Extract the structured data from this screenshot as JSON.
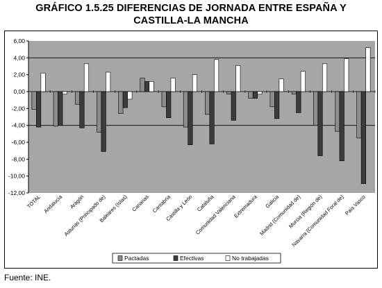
{
  "title_line1": "GRÁFICO 1.5.25 DIFERENCIAS DE JORNADA ENTRE ESPAÑA Y",
  "title_line2": "CASTILLA-LA MANCHA",
  "source": "Fuente: INE.",
  "colors": {
    "plot_bg": "#a6a6a6",
    "pactadas": "#8c8c8c",
    "efectivas": "#3c3c3c",
    "no_trabajadas": "#ffffff",
    "gridline": "#000000"
  },
  "chart_data": {
    "type": "bar",
    "title": "GRÁFICO 1.5.25 DIFERENCIAS DE JORNADA ENTRE ESPAÑA Y CASTILLA-LA MANCHA",
    "xlabel": "",
    "ylabel": "",
    "ylim": [
      -12,
      6
    ],
    "yticks": [
      "6,00",
      "4,00",
      "2,00",
      "0,00",
      "-2,00",
      "-4,00",
      "-6,00",
      "-8,00",
      "-10,00",
      "-12,00"
    ],
    "ytick_values": [
      6,
      4,
      2,
      0,
      -2,
      -4,
      -6,
      -8,
      -10,
      -12
    ],
    "gridlines_at": [
      4,
      -4
    ],
    "legend_position": "bottom",
    "categories": [
      "TOTAL",
      "Andalucía",
      "Aragón",
      "Asturias (Principado de)",
      "Baleares (Islas)",
      "Canarias",
      "Cantabria",
      "Castilla y León",
      "Cataluña",
      "Comunidad Valenciana",
      "Extremadura",
      "Galicia",
      "Madrid (Comunidad de)",
      "Murcia (Región de)",
      "Navarra (Comunidad Foral de)",
      "País Vasco"
    ],
    "series": [
      {
        "name": "Pactadas",
        "values": [
          -2.1,
          -4.1,
          -1.5,
          -4.8,
          -2.6,
          1.6,
          -1.8,
          -4.2,
          -2.7,
          -0.3,
          -0.8,
          -1.8,
          -0.3,
          -4.0,
          -4.7,
          -5.5
        ]
      },
      {
        "name": "Efectivas",
        "values": [
          -4.2,
          -4.0,
          -4.3,
          -7.1,
          -1.9,
          1.2,
          -3.1,
          -6.3,
          -6.2,
          -3.4,
          -0.8,
          -3.2,
          -2.5,
          -7.6,
          -8.2,
          -10.9
        ]
      },
      {
        "name": "No trabajadas",
        "values": [
          2.2,
          -0.3,
          3.3,
          2.3,
          -0.9,
          1.2,
          1.6,
          2.0,
          3.8,
          3.1,
          -0.3,
          1.5,
          2.4,
          3.3,
          3.9,
          5.2
        ]
      }
    ]
  }
}
